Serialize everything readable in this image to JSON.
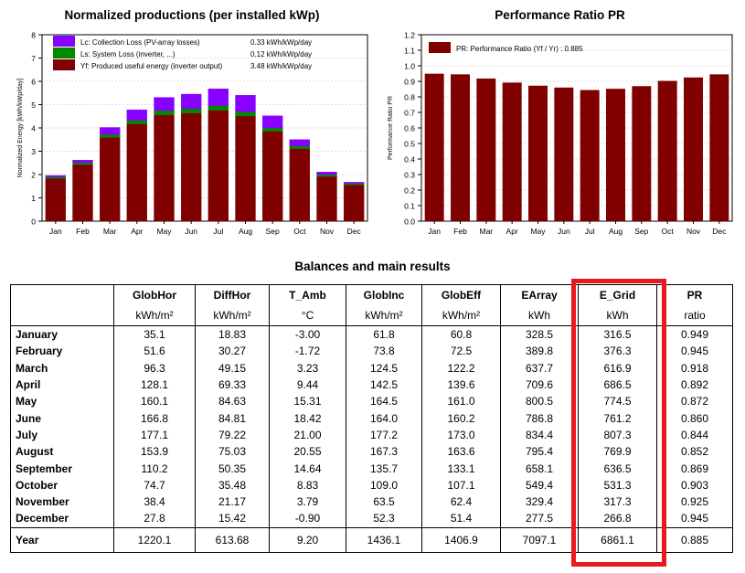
{
  "chart_data": [
    {
      "type": "bar",
      "title": "Normalized productions (per installed kWp)",
      "ylabel": "Normalized Energy [kWh/kWp/day]",
      "xlabel": "",
      "ylim": [
        0,
        8
      ],
      "yticks": [
        0,
        1,
        2,
        3,
        4,
        5,
        6,
        7,
        8
      ],
      "categories": [
        "Jan",
        "Feb",
        "Mar",
        "Apr",
        "May",
        "Jun",
        "Jul",
        "Aug",
        "Sep",
        "Oct",
        "Nov",
        "Dec"
      ],
      "stacked": true,
      "legend": [
        {
          "label": "Lc: Collection Loss (PV-array losses)",
          "value": "0.33 kWh/kWp/day",
          "color": "#8800ff"
        },
        {
          "label": "Ls: System Loss   (inverter, ...)",
          "value": "0.12 kWh/kWp/day",
          "color": "#008800"
        },
        {
          "label": "Yf: Produced useful energy  (inverter output)",
          "value": "3.48 kWh/kWp/day",
          "color": "#800000"
        }
      ],
      "series": [
        {
          "name": "Yf",
          "color": "#800000",
          "values": [
            1.83,
            2.43,
            3.59,
            4.17,
            4.56,
            4.64,
            4.76,
            4.51,
            3.86,
            3.11,
            1.92,
            1.56
          ]
        },
        {
          "name": "Ls",
          "color": "#008800",
          "values": [
            0.07,
            0.09,
            0.13,
            0.16,
            0.19,
            0.19,
            0.2,
            0.18,
            0.14,
            0.12,
            0.08,
            0.06
          ]
        },
        {
          "name": "Lc",
          "color": "#8800ff",
          "values": [
            0.06,
            0.1,
            0.3,
            0.45,
            0.56,
            0.62,
            0.72,
            0.71,
            0.52,
            0.27,
            0.11,
            0.05
          ]
        }
      ]
    },
    {
      "type": "bar",
      "title": "Performance Ratio PR",
      "ylabel": "Performance Ratio PR",
      "xlabel": "",
      "ylim": [
        0,
        1.2
      ],
      "yticks": [
        "0.0",
        "0.1",
        "0.2",
        "0.3",
        "0.4",
        "0.5",
        "0.6",
        "0.7",
        "0.8",
        "0.9",
        "1.0",
        "1.1",
        "1.2"
      ],
      "categories": [
        "Jan",
        "Feb",
        "Mar",
        "Apr",
        "May",
        "Jun",
        "Jul",
        "Aug",
        "Sep",
        "Oct",
        "Nov",
        "Dec"
      ],
      "legend": [
        {
          "label": "PR: Performance Ratio (Yf / Yr) :  0.885",
          "color": "#800000"
        }
      ],
      "series": [
        {
          "name": "PR",
          "color": "#800000",
          "values": [
            0.949,
            0.945,
            0.918,
            0.892,
            0.872,
            0.86,
            0.844,
            0.852,
            0.869,
            0.903,
            0.925,
            0.945
          ]
        }
      ]
    }
  ],
  "table": {
    "title": "Balances and main results",
    "headers": [
      "GlobHor",
      "DiffHor",
      "T_Amb",
      "GlobInc",
      "GlobEff",
      "EArray",
      "E_Grid",
      "PR"
    ],
    "units": [
      "kWh/m²",
      "kWh/m²",
      "°C",
      "kWh/m²",
      "kWh/m²",
      "kWh",
      "kWh",
      "ratio"
    ],
    "rows": [
      {
        "label": "January",
        "values": [
          "35.1",
          "18.83",
          "-3.00",
          "61.8",
          "60.8",
          "328.5",
          "316.5",
          "0.949"
        ]
      },
      {
        "label": "February",
        "values": [
          "51.6",
          "30.27",
          "-1.72",
          "73.8",
          "72.5",
          "389.8",
          "376.3",
          "0.945"
        ]
      },
      {
        "label": "March",
        "values": [
          "96.3",
          "49.15",
          "3.23",
          "124.5",
          "122.2",
          "637.7",
          "616.9",
          "0.918"
        ]
      },
      {
        "label": "April",
        "values": [
          "128.1",
          "69.33",
          "9.44",
          "142.5",
          "139.6",
          "709.6",
          "686.5",
          "0.892"
        ]
      },
      {
        "label": "May",
        "values": [
          "160.1",
          "84.63",
          "15.31",
          "164.5",
          "161.0",
          "800.5",
          "774.5",
          "0.872"
        ]
      },
      {
        "label": "June",
        "values": [
          "166.8",
          "84.81",
          "18.42",
          "164.0",
          "160.2",
          "786.8",
          "761.2",
          "0.860"
        ]
      },
      {
        "label": "July",
        "values": [
          "177.1",
          "79.22",
          "21.00",
          "177.2",
          "173.0",
          "834.4",
          "807.3",
          "0.844"
        ]
      },
      {
        "label": "August",
        "values": [
          "153.9",
          "75.03",
          "20.55",
          "167.3",
          "163.6",
          "795.4",
          "769.9",
          "0.852"
        ]
      },
      {
        "label": "September",
        "values": [
          "110.2",
          "50.35",
          "14.64",
          "135.7",
          "133.1",
          "658.1",
          "636.5",
          "0.869"
        ]
      },
      {
        "label": "October",
        "values": [
          "74.7",
          "35.48",
          "8.83",
          "109.0",
          "107.1",
          "549.4",
          "531.3",
          "0.903"
        ]
      },
      {
        "label": "November",
        "values": [
          "38.4",
          "21.17",
          "3.79",
          "63.5",
          "62.4",
          "329.4",
          "317.3",
          "0.925"
        ]
      },
      {
        "label": "December",
        "values": [
          "27.8",
          "15.42",
          "-0.90",
          "52.3",
          "51.4",
          "277.5",
          "266.8",
          "0.945"
        ]
      }
    ],
    "total": {
      "label": "Year",
      "values": [
        "1220.1",
        "613.68",
        "9.20",
        "1436.1",
        "1406.9",
        "7097.1",
        "6861.1",
        "0.885"
      ]
    },
    "highlight_color": "#e8191f"
  }
}
